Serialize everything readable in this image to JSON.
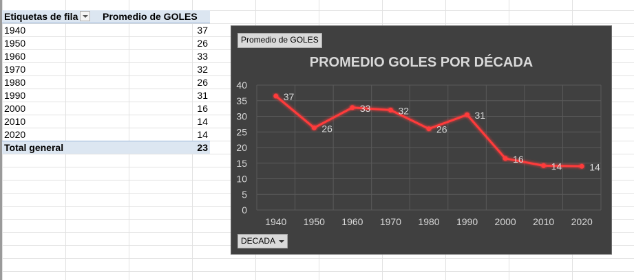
{
  "pivot": {
    "header": {
      "row_labels": "Etiquetas de fila",
      "value_label": "Promedio de GOLES"
    },
    "rows": [
      {
        "label": "1940",
        "value": "37"
      },
      {
        "label": "1950",
        "value": "26"
      },
      {
        "label": "1960",
        "value": "33"
      },
      {
        "label": "1970",
        "value": "32"
      },
      {
        "label": "1980",
        "value": "26"
      },
      {
        "label": "1990",
        "value": "31"
      },
      {
        "label": "2000",
        "value": "16"
      },
      {
        "label": "2010",
        "value": "14"
      },
      {
        "label": "2020",
        "value": "14"
      }
    ],
    "total": {
      "label": "Total general",
      "value": "23"
    }
  },
  "chart_ui": {
    "value_field_button": "Promedio de GOLES",
    "axis_field_button": "DECADA"
  },
  "chart_data": {
    "type": "line",
    "title": "PROMEDIO GOLES POR DÉCADA",
    "xlabel": "",
    "ylabel": "",
    "categories": [
      "1940",
      "1950",
      "1960",
      "1970",
      "1980",
      "1990",
      "2000",
      "2010",
      "2020"
    ],
    "series": [
      {
        "values": [
          36.5,
          26.3,
          32.8,
          32.0,
          26.0,
          30.5,
          16.5,
          14.2,
          14.0
        ],
        "labels": [
          "37",
          "26",
          "33",
          "32",
          "26",
          "31",
          "16",
          "14",
          "14"
        ]
      }
    ],
    "ylim": [
      0,
      40
    ],
    "yticks": [
      0,
      5,
      10,
      15,
      20,
      25,
      30,
      35,
      40
    ],
    "grid": true,
    "legend": "none",
    "colors": {
      "line": "#ff3b3b",
      "background": "#404040",
      "text": "#d9d9d9",
      "grid": "#5a5a5a"
    }
  }
}
